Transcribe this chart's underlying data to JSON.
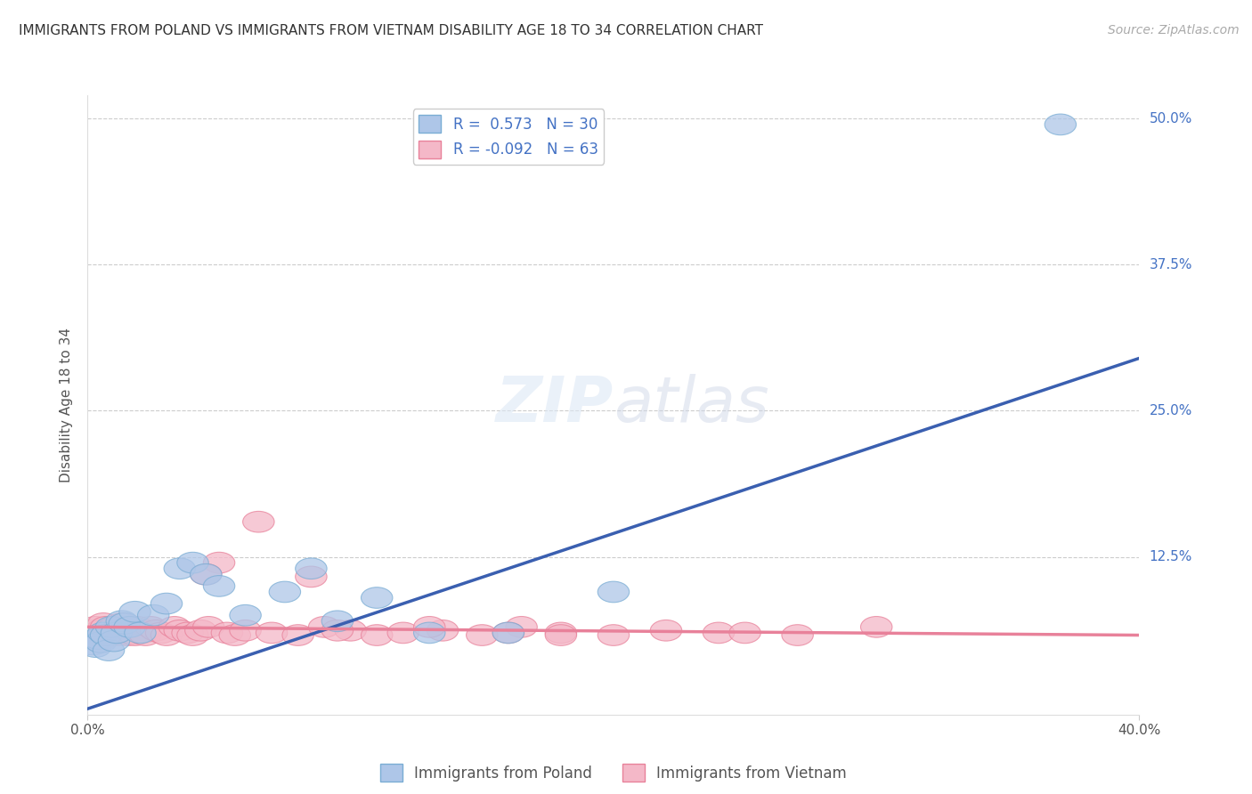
{
  "title": "IMMIGRANTS FROM POLAND VS IMMIGRANTS FROM VIETNAM DISABILITY AGE 18 TO 34 CORRELATION CHART",
  "source": "Source: ZipAtlas.com",
  "ylabel": "Disability Age 18 to 34",
  "xlim": [
    0.0,
    0.4
  ],
  "ylim": [
    -0.01,
    0.52
  ],
  "xticks": [
    0.0,
    0.4
  ],
  "xticklabels": [
    "0.0%",
    "40.0%"
  ],
  "yticks": [
    0.125,
    0.25,
    0.375,
    0.5
  ],
  "yticklabels": [
    "12.5%",
    "25.0%",
    "37.5%",
    "50.0%"
  ],
  "grid_color": "#cccccc",
  "bg_color": "#ffffff",
  "poland_color": "#aec6e8",
  "poland_edge_color": "#7aadd4",
  "vietnam_color": "#f4b8c8",
  "vietnam_edge_color": "#e8819a",
  "poland_line_color": "#3a5fb0",
  "vietnam_line_color": "#e8819a",
  "poland_R": 0.573,
  "poland_N": 30,
  "vietnam_R": -0.092,
  "vietnam_N": 63,
  "legend_label_poland": "Immigrants from Poland",
  "legend_label_vietnam": "Immigrants from Vietnam",
  "poland_x": [
    0.002,
    0.003,
    0.004,
    0.005,
    0.006,
    0.007,
    0.008,
    0.009,
    0.01,
    0.011,
    0.013,
    0.014,
    0.016,
    0.018,
    0.02,
    0.025,
    0.03,
    0.035,
    0.04,
    0.045,
    0.05,
    0.06,
    0.075,
    0.085,
    0.095,
    0.11,
    0.13,
    0.16,
    0.2,
    0.37
  ],
  "poland_y": [
    0.05,
    0.048,
    0.055,
    0.052,
    0.06,
    0.058,
    0.045,
    0.065,
    0.053,
    0.06,
    0.07,
    0.068,
    0.065,
    0.078,
    0.06,
    0.075,
    0.085,
    0.115,
    0.12,
    0.11,
    0.1,
    0.075,
    0.095,
    0.115,
    0.07,
    0.09,
    0.06,
    0.06,
    0.095,
    0.495
  ],
  "vietnam_x": [
    0.001,
    0.002,
    0.003,
    0.003,
    0.004,
    0.005,
    0.006,
    0.006,
    0.007,
    0.008,
    0.008,
    0.009,
    0.01,
    0.011,
    0.011,
    0.012,
    0.013,
    0.014,
    0.015,
    0.016,
    0.017,
    0.018,
    0.019,
    0.02,
    0.021,
    0.022,
    0.024,
    0.026,
    0.028,
    0.03,
    0.033,
    0.035,
    0.038,
    0.04,
    0.043,
    0.046,
    0.05,
    0.053,
    0.056,
    0.06,
    0.065,
    0.07,
    0.08,
    0.09,
    0.1,
    0.11,
    0.12,
    0.135,
    0.15,
    0.165,
    0.18,
    0.2,
    0.22,
    0.24,
    0.27,
    0.3,
    0.25,
    0.18,
    0.13,
    0.095,
    0.045,
    0.085,
    0.16
  ],
  "vietnam_y": [
    0.062,
    0.055,
    0.058,
    0.065,
    0.06,
    0.062,
    0.068,
    0.055,
    0.065,
    0.062,
    0.058,
    0.06,
    0.065,
    0.062,
    0.058,
    0.06,
    0.068,
    0.062,
    0.058,
    0.065,
    0.06,
    0.058,
    0.065,
    0.062,
    0.06,
    0.058,
    0.065,
    0.062,
    0.06,
    0.058,
    0.065,
    0.062,
    0.06,
    0.058,
    0.062,
    0.065,
    0.12,
    0.06,
    0.058,
    0.062,
    0.155,
    0.06,
    0.058,
    0.065,
    0.062,
    0.058,
    0.06,
    0.062,
    0.058,
    0.065,
    0.06,
    0.058,
    0.062,
    0.06,
    0.058,
    0.065,
    0.06,
    0.058,
    0.065,
    0.062,
    0.11,
    0.108,
    0.06
  ],
  "poland_line_x0": 0.0,
  "poland_line_y0": -0.005,
  "poland_line_x1": 0.4,
  "poland_line_y1": 0.295,
  "vietnam_line_x0": 0.0,
  "vietnam_line_y0": 0.065,
  "vietnam_line_x1": 0.4,
  "vietnam_line_y1": 0.058
}
